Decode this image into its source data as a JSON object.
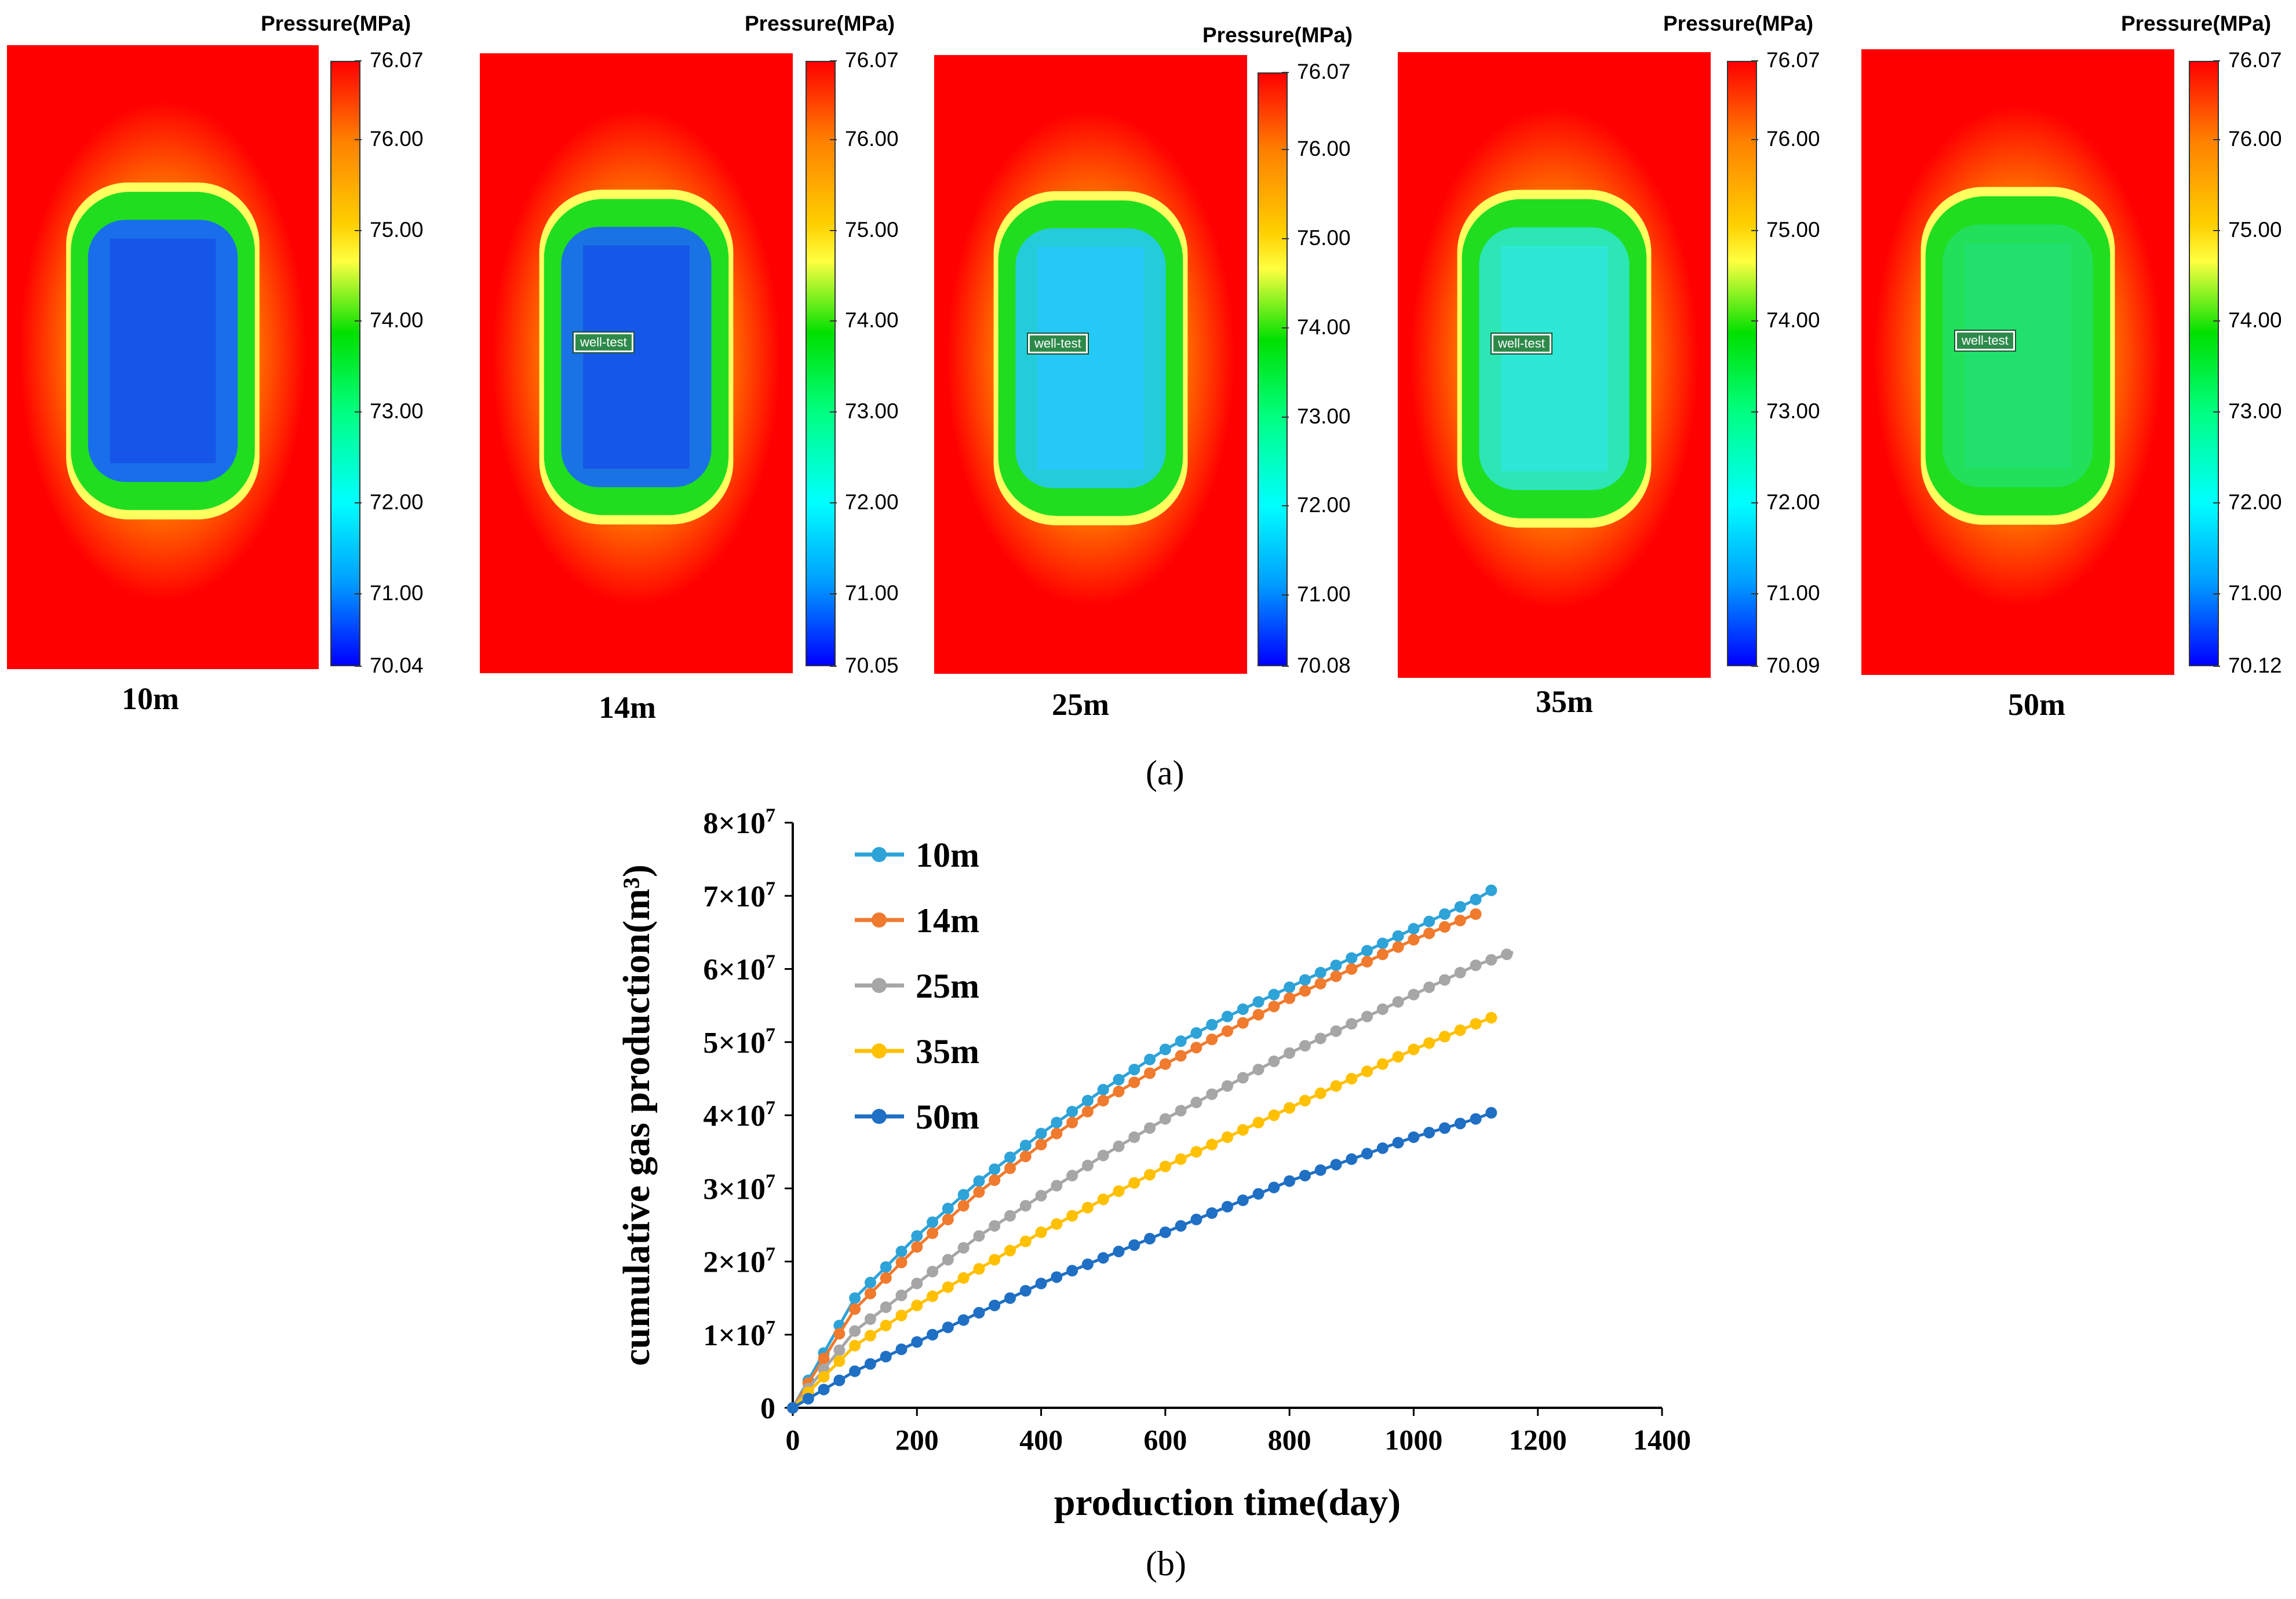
{
  "colorbar_title": "Pressure(MPa)",
  "well_label": "well-test",
  "panels": [
    {
      "label": "10m",
      "ticks": [
        "76.07",
        "76.00",
        "75.00",
        "74.00",
        "73.00",
        "72.00",
        "71.00",
        "70.04"
      ],
      "has_well_label": false,
      "level": 0.95
    },
    {
      "label": "14m",
      "ticks": [
        "76.07",
        "76.00",
        "75.00",
        "74.00",
        "73.00",
        "72.00",
        "71.00",
        "70.05"
      ],
      "has_well_label": true,
      "level": 0.85
    },
    {
      "label": "25m",
      "ticks": [
        "76.07",
        "76.00",
        "75.00",
        "74.00",
        "73.00",
        "72.00",
        "71.00",
        "70.08"
      ],
      "has_well_label": true,
      "level": 0.6
    },
    {
      "label": "35m",
      "ticks": [
        "76.07",
        "76.00",
        "75.00",
        "74.00",
        "73.00",
        "72.00",
        "71.00",
        "70.09"
      ],
      "has_well_label": true,
      "level": 0.45
    },
    {
      "label": "50m",
      "ticks": [
        "76.07",
        "76.00",
        "75.00",
        "74.00",
        "73.00",
        "72.00",
        "71.00",
        "70.12"
      ],
      "has_well_label": true,
      "level": 0.3
    }
  ],
  "caption_a": "(a)",
  "caption_b": "(b)",
  "colors": {
    "s10m": "#2ea3d8",
    "s14m": "#f07a2e",
    "s25m": "#a6a6a6",
    "s35m": "#ffc000",
    "s50m": "#1f6fc4"
  },
  "chart_data": {
    "type": "line",
    "title": "",
    "xlabel": "production time(day)",
    "ylabel": "cumulative gas production(m³)",
    "xlim": [
      0,
      1400
    ],
    "ylim": [
      0,
      80000000
    ],
    "xticks": [
      0,
      200,
      400,
      600,
      800,
      1000,
      1200,
      1400
    ],
    "yticks": [
      0,
      10000000,
      20000000,
      30000000,
      40000000,
      50000000,
      60000000,
      70000000,
      80000000
    ],
    "ytick_labels": [
      "0",
      "1×10",
      "2×10",
      "3×10",
      "4×10",
      "5×10",
      "6×10",
      "7×10",
      "8×10"
    ],
    "ytick_exp": "7",
    "legend_position": "top-left",
    "series": [
      {
        "name": "10m",
        "x": [
          0,
          100,
          200,
          300,
          400,
          500,
          600,
          700,
          800,
          900,
          1000,
          1100,
          1130
        ],
        "y": [
          0,
          15000000,
          23500000,
          31000000,
          37500000,
          43500000,
          49000000,
          53500000,
          57500000,
          61500000,
          65500000,
          69500000,
          71000000
        ]
      },
      {
        "name": "14m",
        "x": [
          0,
          100,
          200,
          300,
          400,
          500,
          600,
          700,
          800,
          900,
          1000,
          1100
        ],
        "y": [
          0,
          13500000,
          22000000,
          29500000,
          36000000,
          42000000,
          47000000,
          51500000,
          56000000,
          60000000,
          64000000,
          67500000
        ]
      },
      {
        "name": "25m",
        "x": [
          0,
          100,
          200,
          300,
          400,
          500,
          600,
          700,
          800,
          900,
          1000,
          1100,
          1160
        ],
        "y": [
          0,
          10500000,
          17000000,
          23500000,
          29000000,
          34500000,
          39500000,
          44000000,
          48500000,
          52500000,
          56500000,
          60500000,
          62300000
        ]
      },
      {
        "name": "35m",
        "x": [
          0,
          100,
          200,
          300,
          400,
          500,
          600,
          700,
          800,
          900,
          1000,
          1100,
          1130
        ],
        "y": [
          0,
          8500000,
          14000000,
          19000000,
          24000000,
          28500000,
          33000000,
          37000000,
          41000000,
          45000000,
          49000000,
          52500000,
          53500000
        ]
      },
      {
        "name": "50m",
        "x": [
          0,
          100,
          200,
          300,
          400,
          500,
          600,
          700,
          800,
          900,
          1000,
          1100,
          1130
        ],
        "y": [
          0,
          5000000,
          9000000,
          13000000,
          17000000,
          20500000,
          24000000,
          27500000,
          31000000,
          34000000,
          37000000,
          39500000,
          40500000
        ]
      }
    ]
  }
}
